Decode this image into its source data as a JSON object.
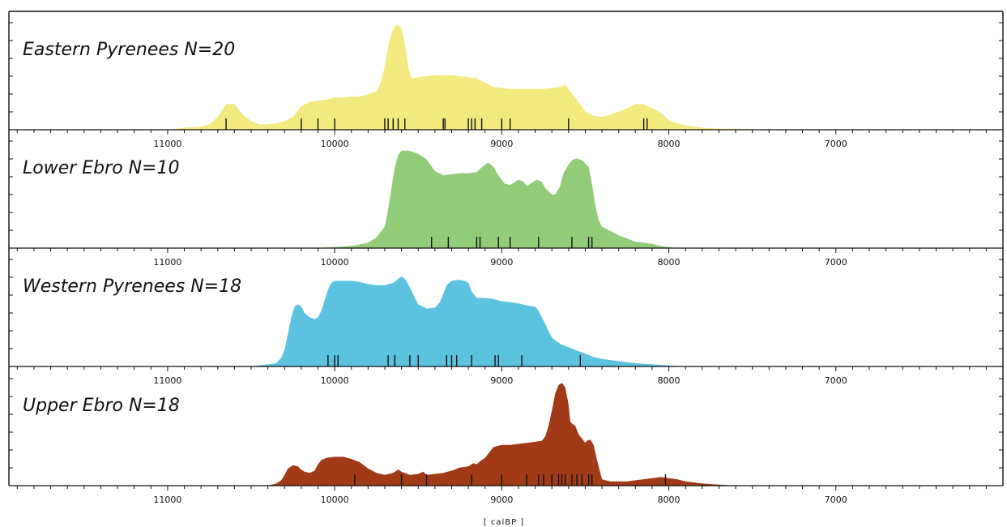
{
  "chart_data": {
    "type": "area",
    "xlabel": "[ calBP ]",
    "xlim": [
      11950,
      6000
    ],
    "x_ticks": [
      11000,
      10000,
      9000,
      8000,
      7000
    ],
    "x_axis": "reversed",
    "panels": [
      {
        "title": "Eastern Pyrenees  N=20",
        "color": "#f2ea7e",
        "density": [
          [
            11000,
            0.0
          ],
          [
            10950,
            0.01
          ],
          [
            10900,
            0.02
          ],
          [
            10800,
            0.03
          ],
          [
            10750,
            0.05
          ],
          [
            10700,
            0.12
          ],
          [
            10650,
            0.24
          ],
          [
            10600,
            0.24
          ],
          [
            10550,
            0.14
          ],
          [
            10500,
            0.08
          ],
          [
            10450,
            0.05
          ],
          [
            10400,
            0.05
          ],
          [
            10350,
            0.06
          ],
          [
            10300,
            0.08
          ],
          [
            10250,
            0.12
          ],
          [
            10200,
            0.22
          ],
          [
            10150,
            0.26
          ],
          [
            10100,
            0.27
          ],
          [
            10050,
            0.28
          ],
          [
            10000,
            0.3
          ],
          [
            9950,
            0.3
          ],
          [
            9900,
            0.31
          ],
          [
            9850,
            0.31
          ],
          [
            9800,
            0.33
          ],
          [
            9750,
            0.36
          ],
          [
            9720,
            0.46
          ],
          [
            9700,
            0.6
          ],
          [
            9680,
            0.78
          ],
          [
            9660,
            0.9
          ],
          [
            9640,
            0.97
          ],
          [
            9620,
            0.98
          ],
          [
            9600,
            0.95
          ],
          [
            9580,
            0.8
          ],
          [
            9560,
            0.58
          ],
          [
            9540,
            0.48
          ],
          [
            9500,
            0.49
          ],
          [
            9450,
            0.5
          ],
          [
            9400,
            0.51
          ],
          [
            9350,
            0.51
          ],
          [
            9300,
            0.51
          ],
          [
            9250,
            0.5
          ],
          [
            9200,
            0.49
          ],
          [
            9150,
            0.48
          ],
          [
            9100,
            0.44
          ],
          [
            9050,
            0.4
          ],
          [
            9000,
            0.39
          ],
          [
            8950,
            0.38
          ],
          [
            8900,
            0.38
          ],
          [
            8850,
            0.38
          ],
          [
            8800,
            0.38
          ],
          [
            8750,
            0.38
          ],
          [
            8700,
            0.39
          ],
          [
            8650,
            0.4
          ],
          [
            8620,
            0.42
          ],
          [
            8600,
            0.38
          ],
          [
            8570,
            0.32
          ],
          [
            8550,
            0.28
          ],
          [
            8500,
            0.17
          ],
          [
            8450,
            0.13
          ],
          [
            8400,
            0.12
          ],
          [
            8350,
            0.14
          ],
          [
            8300,
            0.17
          ],
          [
            8250,
            0.2
          ],
          [
            8200,
            0.24
          ],
          [
            8150,
            0.24
          ],
          [
            8100,
            0.2
          ],
          [
            8050,
            0.16
          ],
          [
            8000,
            0.09
          ],
          [
            7950,
            0.06
          ],
          [
            7900,
            0.04
          ],
          [
            7800,
            0.02
          ],
          [
            7700,
            0.01
          ],
          [
            7600,
            0.01
          ],
          [
            7400,
            0.0
          ]
        ],
        "dates": [
          10650,
          10200,
          10100,
          10000,
          9700,
          9680,
          9650,
          9620,
          9580,
          9350,
          9340,
          9200,
          9180,
          9160,
          9120,
          9000,
          8950,
          8600,
          8150,
          8130
        ]
      },
      {
        "title": "Lower Ebro N=10",
        "color": "#93cc79",
        "density": [
          [
            10150,
            0.0
          ],
          [
            10000,
            0.01
          ],
          [
            9900,
            0.02
          ],
          [
            9800,
            0.05
          ],
          [
            9750,
            0.1
          ],
          [
            9700,
            0.2
          ],
          [
            9680,
            0.36
          ],
          [
            9660,
            0.56
          ],
          [
            9640,
            0.76
          ],
          [
            9620,
            0.87
          ],
          [
            9600,
            0.91
          ],
          [
            9550,
            0.91
          ],
          [
            9500,
            0.88
          ],
          [
            9450,
            0.83
          ],
          [
            9400,
            0.72
          ],
          [
            9350,
            0.68
          ],
          [
            9300,
            0.69
          ],
          [
            9250,
            0.7
          ],
          [
            9200,
            0.7
          ],
          [
            9150,
            0.71
          ],
          [
            9130,
            0.74
          ],
          [
            9100,
            0.78
          ],
          [
            9080,
            0.8
          ],
          [
            9050,
            0.76
          ],
          [
            9020,
            0.68
          ],
          [
            9000,
            0.64
          ],
          [
            8980,
            0.6
          ],
          [
            8950,
            0.59
          ],
          [
            8920,
            0.62
          ],
          [
            8900,
            0.64
          ],
          [
            8870,
            0.62
          ],
          [
            8850,
            0.58
          ],
          [
            8820,
            0.61
          ],
          [
            8790,
            0.64
          ],
          [
            8760,
            0.62
          ],
          [
            8740,
            0.56
          ],
          [
            8700,
            0.5
          ],
          [
            8680,
            0.5
          ],
          [
            8650,
            0.58
          ],
          [
            8630,
            0.7
          ],
          [
            8600,
            0.78
          ],
          [
            8580,
            0.82
          ],
          [
            8550,
            0.84
          ],
          [
            8520,
            0.82
          ],
          [
            8500,
            0.79
          ],
          [
            8480,
            0.76
          ],
          [
            8460,
            0.6
          ],
          [
            8440,
            0.4
          ],
          [
            8420,
            0.26
          ],
          [
            8400,
            0.2
          ],
          [
            8350,
            0.16
          ],
          [
            8300,
            0.12
          ],
          [
            8250,
            0.09
          ],
          [
            8200,
            0.06
          ],
          [
            8150,
            0.05
          ],
          [
            8100,
            0.04
          ],
          [
            8050,
            0.02
          ],
          [
            8000,
            0.01
          ],
          [
            7950,
            0.0
          ]
        ],
        "dates": [
          9420,
          9320,
          9150,
          9130,
          9020,
          8950,
          8780,
          8580,
          8480,
          8460
        ]
      },
      {
        "title": "Western Pyrenees N=18",
        "color": "#5bc3e0",
        "density": [
          [
            10500,
            0.0
          ],
          [
            10450,
            0.01
          ],
          [
            10400,
            0.02
          ],
          [
            10350,
            0.03
          ],
          [
            10320,
            0.08
          ],
          [
            10300,
            0.16
          ],
          [
            10280,
            0.3
          ],
          [
            10260,
            0.46
          ],
          [
            10240,
            0.56
          ],
          [
            10220,
            0.58
          ],
          [
            10200,
            0.56
          ],
          [
            10180,
            0.5
          ],
          [
            10150,
            0.46
          ],
          [
            10120,
            0.44
          ],
          [
            10100,
            0.46
          ],
          [
            10080,
            0.52
          ],
          [
            10060,
            0.62
          ],
          [
            10040,
            0.72
          ],
          [
            10020,
            0.78
          ],
          [
            10000,
            0.8
          ],
          [
            9950,
            0.8
          ],
          [
            9900,
            0.8
          ],
          [
            9850,
            0.79
          ],
          [
            9800,
            0.77
          ],
          [
            9750,
            0.76
          ],
          [
            9700,
            0.76
          ],
          [
            9650,
            0.78
          ],
          [
            9620,
            0.82
          ],
          [
            9600,
            0.84
          ],
          [
            9580,
            0.82
          ],
          [
            9550,
            0.74
          ],
          [
            9520,
            0.64
          ],
          [
            9500,
            0.58
          ],
          [
            9470,
            0.56
          ],
          [
            9450,
            0.54
          ],
          [
            9400,
            0.55
          ],
          [
            9370,
            0.6
          ],
          [
            9350,
            0.68
          ],
          [
            9330,
            0.76
          ],
          [
            9300,
            0.8
          ],
          [
            9260,
            0.81
          ],
          [
            9220,
            0.8
          ],
          [
            9200,
            0.78
          ],
          [
            9180,
            0.7
          ],
          [
            9150,
            0.64
          ],
          [
            9100,
            0.64
          ],
          [
            9050,
            0.63
          ],
          [
            9000,
            0.61
          ],
          [
            8950,
            0.6
          ],
          [
            8900,
            0.59
          ],
          [
            8850,
            0.57
          ],
          [
            8800,
            0.56
          ],
          [
            8780,
            0.52
          ],
          [
            8760,
            0.46
          ],
          [
            8740,
            0.4
          ],
          [
            8720,
            0.33
          ],
          [
            8700,
            0.27
          ],
          [
            8650,
            0.21
          ],
          [
            8600,
            0.18
          ],
          [
            8550,
            0.15
          ],
          [
            8500,
            0.12
          ],
          [
            8450,
            0.09
          ],
          [
            8400,
            0.07
          ],
          [
            8350,
            0.06
          ],
          [
            8300,
            0.05
          ],
          [
            8250,
            0.04
          ],
          [
            8200,
            0.03
          ],
          [
            8100,
            0.02
          ],
          [
            8000,
            0.01
          ],
          [
            7900,
            0.0
          ]
        ],
        "dates": [
          10040,
          10000,
          9980,
          9680,
          9640,
          9550,
          9500,
          9330,
          9300,
          9270,
          9180,
          9040,
          9020,
          8880,
          8530
        ]
      },
      {
        "title": "Upper Ebro N=18",
        "color": "#a03a17",
        "density": [
          [
            10400,
            0.0
          ],
          [
            10350,
            0.02
          ],
          [
            10320,
            0.05
          ],
          [
            10300,
            0.1
          ],
          [
            10280,
            0.16
          ],
          [
            10250,
            0.19
          ],
          [
            10220,
            0.18
          ],
          [
            10200,
            0.15
          ],
          [
            10180,
            0.13
          ],
          [
            10150,
            0.12
          ],
          [
            10120,
            0.14
          ],
          [
            10100,
            0.2
          ],
          [
            10080,
            0.24
          ],
          [
            10050,
            0.26
          ],
          [
            10000,
            0.27
          ],
          [
            9950,
            0.27
          ],
          [
            9900,
            0.25
          ],
          [
            9850,
            0.22
          ],
          [
            9800,
            0.16
          ],
          [
            9750,
            0.12
          ],
          [
            9700,
            0.1
          ],
          [
            9650,
            0.12
          ],
          [
            9620,
            0.15
          ],
          [
            9600,
            0.13
          ],
          [
            9550,
            0.1
          ],
          [
            9500,
            0.11
          ],
          [
            9470,
            0.13
          ],
          [
            9450,
            0.1
          ],
          [
            9400,
            0.11
          ],
          [
            9350,
            0.12
          ],
          [
            9300,
            0.14
          ],
          [
            9250,
            0.17
          ],
          [
            9200,
            0.18
          ],
          [
            9170,
            0.21
          ],
          [
            9150,
            0.2
          ],
          [
            9120,
            0.24
          ],
          [
            9100,
            0.26
          ],
          [
            9070,
            0.32
          ],
          [
            9050,
            0.36
          ],
          [
            9000,
            0.38
          ],
          [
            8950,
            0.38
          ],
          [
            8900,
            0.39
          ],
          [
            8850,
            0.4
          ],
          [
            8800,
            0.41
          ],
          [
            8760,
            0.42
          ],
          [
            8740,
            0.46
          ],
          [
            8720,
            0.56
          ],
          [
            8700,
            0.7
          ],
          [
            8680,
            0.86
          ],
          [
            8660,
            0.94
          ],
          [
            8640,
            0.96
          ],
          [
            8620,
            0.92
          ],
          [
            8600,
            0.76
          ],
          [
            8590,
            0.6
          ],
          [
            8580,
            0.58
          ],
          [
            8560,
            0.56
          ],
          [
            8540,
            0.48
          ],
          [
            8520,
            0.44
          ],
          [
            8500,
            0.4
          ],
          [
            8490,
            0.42
          ],
          [
            8470,
            0.43
          ],
          [
            8450,
            0.38
          ],
          [
            8430,
            0.24
          ],
          [
            8410,
            0.12
          ],
          [
            8400,
            0.06
          ],
          [
            8380,
            0.05
          ],
          [
            8350,
            0.04
          ],
          [
            8300,
            0.04
          ],
          [
            8250,
            0.04
          ],
          [
            8200,
            0.05
          ],
          [
            8150,
            0.06
          ],
          [
            8100,
            0.07
          ],
          [
            8050,
            0.08
          ],
          [
            8000,
            0.07
          ],
          [
            7950,
            0.06
          ],
          [
            7900,
            0.04
          ],
          [
            7850,
            0.03
          ],
          [
            7800,
            0.02
          ],
          [
            7700,
            0.01
          ],
          [
            7600,
            0.0
          ]
        ],
        "dates": [
          9880,
          9600,
          9450,
          9180,
          9000,
          8850,
          8780,
          8750,
          8700,
          8660,
          8640,
          8620,
          8580,
          8550,
          8520,
          8480,
          8460,
          8020
        ]
      }
    ]
  }
}
